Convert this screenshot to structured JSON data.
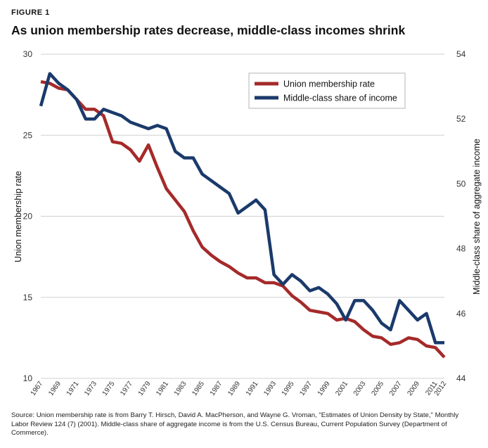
{
  "figure_label": "FIGURE 1",
  "title": "As union membership rates decrease, middle-class incomes shrink",
  "source": "Source: Union membership rate is from Barry T. Hirsch, David A. MacPherson, and Wayne G. Vroman, \"Estimates of Union Density by State,\" Monthly Labor Review 124 (7) (2001). Middle-class share of aggregate income is from the U.S. Census Bureau, Current Population Survey (Department of Commerce).",
  "chart_data": {
    "type": "line",
    "ylabel": "Union membership rate",
    "y2label": "Middle-class share of aggregate income",
    "ylim": [
      10,
      30
    ],
    "y2lim": [
      44,
      54
    ],
    "xlim": [
      1967,
      2012
    ],
    "x_tick_labels": [
      "1967",
      "1969",
      "1971",
      "1973",
      "1975",
      "1977",
      "1979",
      "1981",
      "1983",
      "1985",
      "1987",
      "1989",
      "1991",
      "1993",
      "1995",
      "1997",
      "1999",
      "2001",
      "2003",
      "2005",
      "2007",
      "2009",
      "2011",
      "2012"
    ],
    "y_tick_labels": [
      "10",
      "15",
      "20",
      "25",
      "30"
    ],
    "y2_tick_labels": [
      "44",
      "46",
      "48",
      "50",
      "52",
      "54"
    ],
    "legend_position": "top-right",
    "grid": "horizontal",
    "x": [
      1967,
      1968,
      1969,
      1970,
      1971,
      1972,
      1973,
      1974,
      1975,
      1976,
      1977,
      1978,
      1979,
      1980,
      1981,
      1982,
      1983,
      1984,
      1985,
      1986,
      1987,
      1988,
      1989,
      1990,
      1991,
      1992,
      1993,
      1994,
      1995,
      1996,
      1997,
      1998,
      1999,
      2000,
      2001,
      2002,
      2003,
      2004,
      2005,
      2006,
      2007,
      2008,
      2009,
      2010,
      2011,
      2012
    ],
    "series": [
      {
        "name": "Union membership rate",
        "axis": "left",
        "color": "#a52a2a",
        "values": [
          28.3,
          28.2,
          27.9,
          27.8,
          27.2,
          26.6,
          26.6,
          26.2,
          24.6,
          24.5,
          24.1,
          23.4,
          24.4,
          23.0,
          21.7,
          21.0,
          20.3,
          19.1,
          18.1,
          17.6,
          17.2,
          16.9,
          16.5,
          16.2,
          16.2,
          15.9,
          15.9,
          15.7,
          15.1,
          14.7,
          14.2,
          14.1,
          14.0,
          13.6,
          13.7,
          13.5,
          13.0,
          12.6,
          12.5,
          12.1,
          12.2,
          12.5,
          12.4,
          12.0,
          11.9,
          11.3
        ]
      },
      {
        "name": "Middle-class share of income",
        "axis": "right",
        "color": "#1b3a6b",
        "values": [
          52.4,
          53.4,
          53.1,
          52.9,
          52.6,
          52.0,
          52.0,
          52.3,
          52.2,
          52.1,
          51.9,
          51.8,
          51.7,
          51.8,
          51.7,
          51.0,
          50.8,
          50.8,
          50.3,
          50.1,
          49.9,
          49.7,
          49.1,
          49.3,
          49.5,
          49.2,
          47.2,
          46.9,
          47.2,
          47.0,
          46.7,
          46.8,
          46.6,
          46.3,
          45.8,
          46.4,
          46.4,
          46.1,
          45.7,
          45.5,
          46.4,
          46.1,
          45.8,
          46.0,
          45.1,
          45.1
        ]
      }
    ]
  }
}
